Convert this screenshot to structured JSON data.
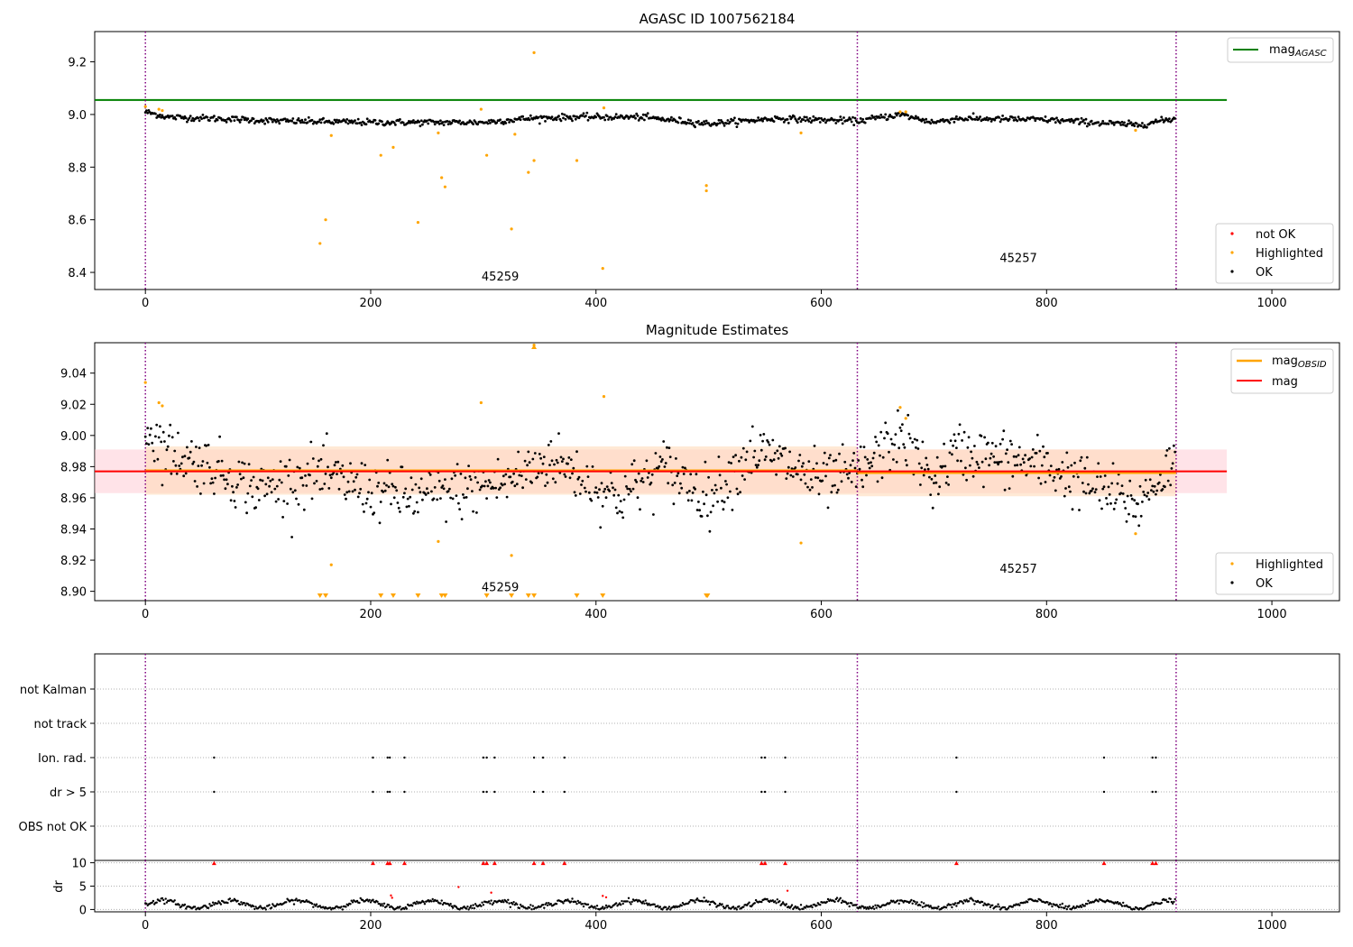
{
  "chart_data": [
    {
      "type": "scatter",
      "title": "AGASC ID 1007562184",
      "xlabel": "",
      "ylabel": "",
      "xlim": [
        -45,
        1060
      ],
      "ylim": [
        8.335,
        9.315
      ],
      "xticks": [
        0,
        200,
        400,
        600,
        800,
        1000
      ],
      "yticks": [
        8.4,
        8.6,
        8.8,
        9.0,
        9.2
      ],
      "ytick_labels": [
        "8.4",
        "8.6",
        "8.8",
        "9.0",
        "9.2"
      ],
      "obs_boundaries": [
        0,
        632,
        915
      ],
      "obs_labels": [
        {
          "text": "45259",
          "x": 315,
          "y": 8.37
        },
        {
          "text": "45257",
          "x": 775,
          "y": 8.44
        }
      ],
      "mag_agasc": {
        "name": "mag_AGASC",
        "value": 9.055,
        "x": [
          -45,
          960
        ],
        "color": "#008000"
      },
      "ok_series": {
        "name": "OK",
        "color": "#000000",
        "baseline": 8.985,
        "n_points": 915,
        "trend_x": [
          0,
          20,
          60,
          120,
          200,
          300,
          340,
          380,
          440,
          500,
          560,
          632,
          670,
          700,
          720,
          800,
          880,
          915
        ],
        "trend_y": [
          9.01,
          8.99,
          8.985,
          8.975,
          8.97,
          8.97,
          8.985,
          8.99,
          8.99,
          8.965,
          8.985,
          8.975,
          9.0,
          8.97,
          8.985,
          8.98,
          8.96,
          8.985
        ]
      },
      "highlighted": {
        "name": "Highlighted",
        "color": "#FFA500",
        "points": [
          [
            0,
            9.03
          ],
          [
            12,
            9.02
          ],
          [
            15,
            9.015
          ],
          [
            155,
            8.51
          ],
          [
            160,
            8.6
          ],
          [
            165,
            8.92
          ],
          [
            209,
            8.845
          ],
          [
            220,
            8.875
          ],
          [
            242,
            8.59
          ],
          [
            260,
            8.93
          ],
          [
            263,
            8.76
          ],
          [
            266,
            8.725
          ],
          [
            298,
            9.02
          ],
          [
            303,
            8.845
          ],
          [
            325,
            8.565
          ],
          [
            328,
            8.925
          ],
          [
            340,
            8.78
          ],
          [
            345,
            8.825
          ],
          [
            345,
            9.235
          ],
          [
            383,
            8.825
          ],
          [
            406,
            8.415
          ],
          [
            407,
            9.025
          ],
          [
            498,
            8.73
          ],
          [
            498,
            8.71
          ],
          [
            582,
            8.93
          ],
          [
            670,
            9.01
          ],
          [
            675,
            9.01
          ],
          [
            879,
            8.94
          ]
        ]
      },
      "legend_top": [
        "mag_AGASC"
      ],
      "legend_bottom": [
        "not OK",
        "Highlighted",
        "OK"
      ]
    },
    {
      "type": "scatter",
      "title": "Magnitude Estimates",
      "xlabel": "",
      "ylabel": "",
      "xlim": [
        -45,
        1060
      ],
      "ylim": [
        8.894,
        9.0595
      ],
      "xticks": [
        0,
        200,
        400,
        600,
        800,
        1000
      ],
      "yticks": [
        8.9,
        8.92,
        8.94,
        8.96,
        8.98,
        9.0,
        9.02,
        9.04
      ],
      "ytick_labels": [
        "8.90",
        "8.92",
        "8.94",
        "8.96",
        "8.98",
        "9.00",
        "9.02",
        "9.04"
      ],
      "obs_boundaries": [
        0,
        632,
        915
      ],
      "obs_labels": [
        {
          "text": "45259",
          "x": 315,
          "y": 8.9
        },
        {
          "text": "45257",
          "x": 775,
          "y": 8.912
        }
      ],
      "mag": {
        "name": "mag",
        "value": 8.977,
        "band": [
          8.963,
          8.991
        ],
        "x": [
          -45,
          960
        ],
        "color": "#FF0000"
      },
      "mag_obsid": {
        "name": "mag_OBSID",
        "color": "#FFA500",
        "segments": [
          {
            "x": [
              0,
              632
            ],
            "value": 8.9775,
            "band": [
              8.962,
              8.993
            ]
          },
          {
            "x": [
              632,
              915
            ],
            "value": 8.976,
            "band": [
              8.961,
              8.991
            ]
          }
        ]
      },
      "ok_series": {
        "name": "OK",
        "color": "#000000",
        "baseline": 8.977,
        "n_points": 915,
        "trend_x": [
          0,
          20,
          60,
          100,
          150,
          200,
          240,
          280,
          320,
          360,
          420,
          460,
          500,
          540,
          560,
          600,
          632,
          670,
          700,
          720,
          800,
          880,
          915
        ],
        "trend_y": [
          9.005,
          8.99,
          8.98,
          8.965,
          8.975,
          8.965,
          8.96,
          8.965,
          8.97,
          8.985,
          8.96,
          8.98,
          8.96,
          8.99,
          8.985,
          8.97,
          8.975,
          9.0,
          8.97,
          8.99,
          8.98,
          8.955,
          8.985
        ]
      },
      "highlighted": {
        "name": "Highlighted",
        "color": "#FFA500",
        "points": [
          [
            0,
            9.034
          ],
          [
            12,
            9.021
          ],
          [
            15,
            9.019
          ],
          [
            165,
            8.917
          ],
          [
            260,
            8.932
          ],
          [
            298,
            9.021
          ],
          [
            325,
            8.923
          ],
          [
            345,
            9.058
          ],
          [
            407,
            9.025
          ],
          [
            582,
            8.931
          ],
          [
            670,
            9.018
          ],
          [
            675,
            9.011
          ],
          [
            879,
            8.937
          ]
        ]
      },
      "clipped_low_x": [
        155,
        160,
        209,
        220,
        242,
        263,
        266,
        303,
        325,
        340,
        345,
        383,
        406,
        498,
        499
      ],
      "legend_top": [
        "mag_OBSID",
        "mag"
      ],
      "legend_bottom": [
        "Highlighted",
        "OK"
      ]
    },
    {
      "type": "scatter",
      "title": "",
      "xlabel": "",
      "ylabel": "",
      "xlim": [
        -45,
        1060
      ],
      "flags": [
        "not Kalman",
        "not track",
        "Ion. rad.",
        "dr > 5",
        "OBS not OK"
      ],
      "obs_boundaries": [
        0,
        632,
        915
      ],
      "flag_x": {
        "not Kalman": [],
        "not track": [],
        "Ion. rad.": [
          61,
          202,
          215,
          217,
          230,
          300,
          303,
          310,
          345,
          353,
          372,
          547,
          550,
          568,
          720,
          851,
          894,
          897
        ],
        "dr > 5": [
          61,
          202,
          215,
          217,
          230,
          300,
          303,
          310,
          345,
          353,
          372,
          547,
          550,
          568,
          720,
          851,
          894,
          897
        ],
        "OBS not OK": []
      }
    },
    {
      "type": "scatter",
      "title": "",
      "xlabel": "",
      "ylabel": "dr",
      "xlim": [
        -45,
        1060
      ],
      "ylim": [
        -0.5,
        10.5
      ],
      "xticks": [
        0,
        200,
        400,
        600,
        800,
        1000
      ],
      "yticks": [
        0,
        5,
        10
      ],
      "ytick_labels": [
        "0",
        "5",
        "10"
      ],
      "obs_boundaries": [
        0,
        632,
        915
      ],
      "ok_series": {
        "name": "OK",
        "color": "#000000",
        "n_points": 915
      },
      "not_ok": {
        "name": "not OK",
        "color": "#FF0000",
        "clipped_x": [
          61,
          202,
          215,
          217,
          230,
          300,
          303,
          310,
          345,
          353,
          372,
          547,
          550,
          568,
          720,
          851,
          894,
          897
        ],
        "points": [
          [
            218,
            3.0
          ],
          [
            219,
            2.5
          ],
          [
            278,
            4.8
          ],
          [
            307,
            3.6
          ],
          [
            406,
            2.9
          ],
          [
            409,
            2.6
          ],
          [
            570,
            4.0
          ]
        ]
      }
    }
  ],
  "colors": {
    "ok": "#000000",
    "highlighted": "#FFA500",
    "not_ok": "#FF0000",
    "mag_agasc": "#008000",
    "mag": "#FF0000",
    "mag_obsid": "#FFA500",
    "band_mag": "#FFC0CB",
    "band_obsid": "#FFDAB9",
    "boundary": "#800080"
  }
}
